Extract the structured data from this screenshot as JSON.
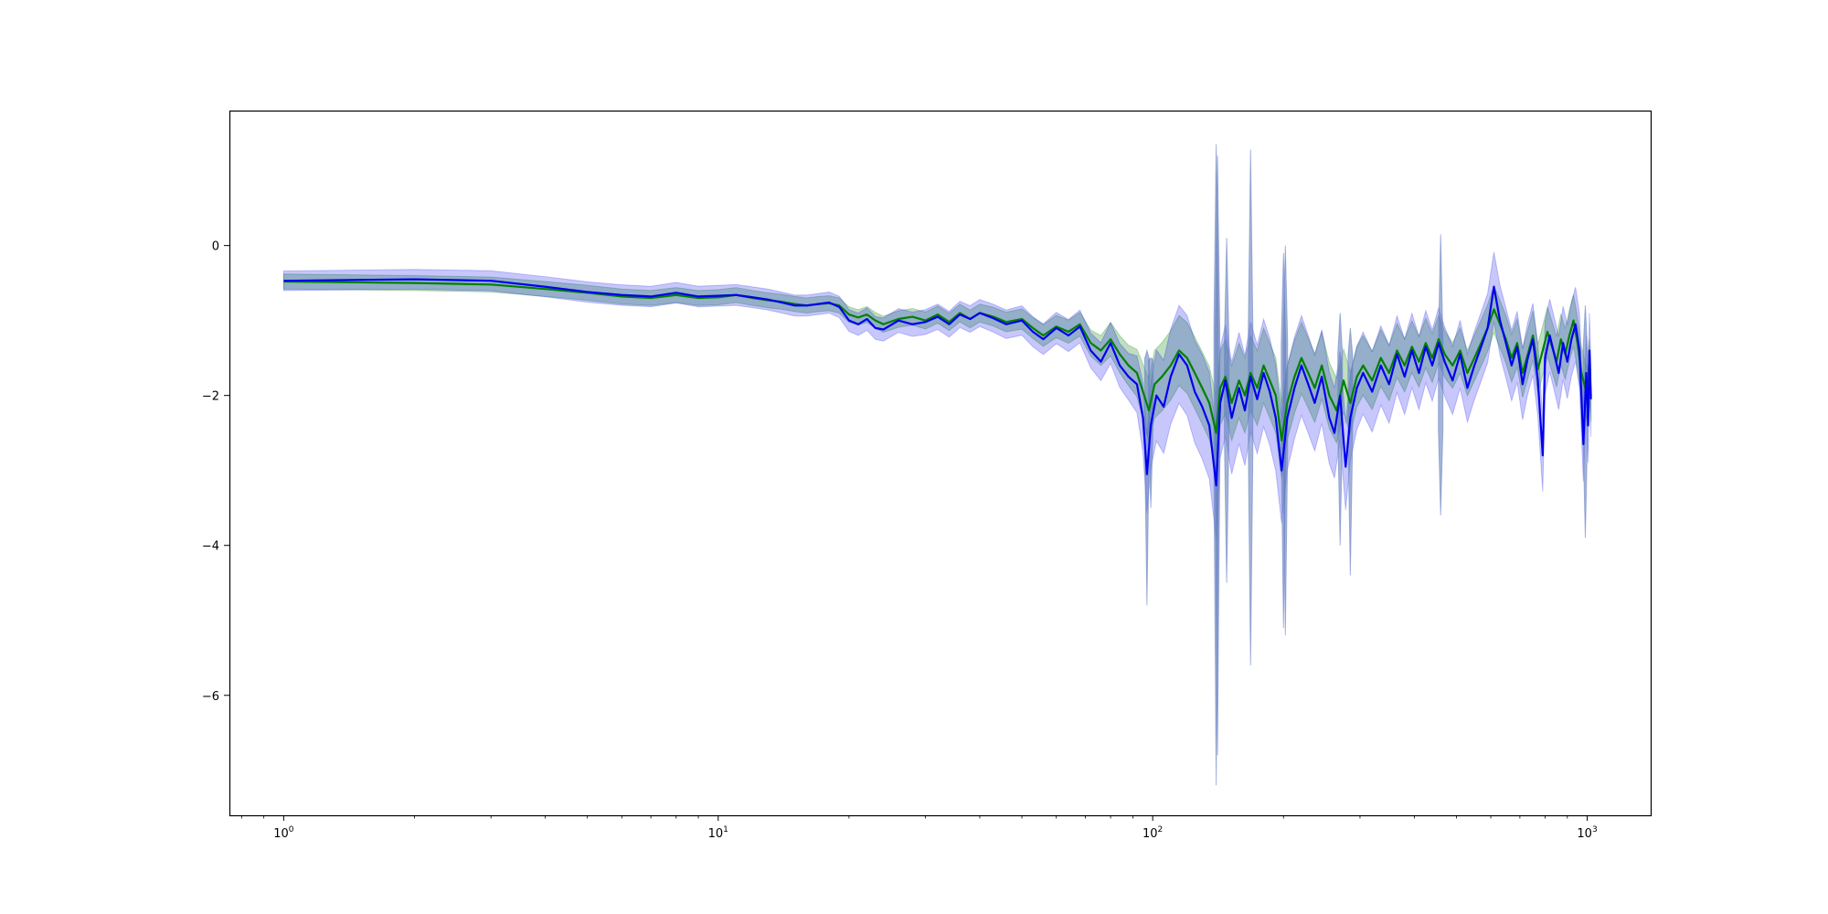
{
  "chart_data": {
    "type": "line",
    "title": "",
    "xlabel": "",
    "ylabel": "",
    "x_scale": "log",
    "xlim": [
      0.75,
      1400
    ],
    "ylim": [
      -7.6,
      1.8
    ],
    "grid": false,
    "legend": "none",
    "x_ticks": [
      {
        "value": 1,
        "base": "10",
        "exp": "0"
      },
      {
        "value": 10,
        "base": "10",
        "exp": "1"
      },
      {
        "value": 100,
        "base": "10",
        "exp": "2"
      },
      {
        "value": 1000,
        "base": "10",
        "exp": "3"
      }
    ],
    "y_ticks": [
      {
        "value": 0,
        "label": "0"
      },
      {
        "value": -2,
        "label": "−2"
      },
      {
        "value": -4,
        "label": "−4"
      },
      {
        "value": -6,
        "label": "−6"
      }
    ],
    "series": [
      {
        "color": "#008000",
        "band_color": "#008000",
        "band_opacity": 0.25,
        "points": [
          [
            1,
            -0.48
          ],
          [
            2,
            -0.5
          ],
          [
            3,
            -0.52
          ],
          [
            4,
            -0.58
          ],
          [
            5,
            -0.63
          ],
          [
            6,
            -0.68
          ],
          [
            7,
            -0.7
          ],
          [
            8,
            -0.66
          ],
          [
            9,
            -0.7
          ],
          [
            10,
            -0.69
          ],
          [
            11,
            -0.66
          ],
          [
            12,
            -0.7
          ],
          [
            13,
            -0.73
          ],
          [
            14,
            -0.75
          ],
          [
            15,
            -0.78
          ],
          [
            16,
            -0.8
          ],
          [
            17,
            -0.78
          ],
          [
            18,
            -0.77
          ],
          [
            19,
            -0.8
          ],
          [
            20,
            -0.92
          ],
          [
            21,
            -0.96
          ],
          [
            22,
            -0.92
          ],
          [
            23,
            -1.0
          ],
          [
            24,
            -1.05
          ],
          [
            26,
            -0.98
          ],
          [
            28,
            -0.95
          ],
          [
            30,
            -1.0
          ],
          [
            32,
            -0.92
          ],
          [
            34,
            -1.02
          ],
          [
            36,
            -0.9
          ],
          [
            38,
            -0.98
          ],
          [
            40,
            -0.9
          ],
          [
            43,
            -0.95
          ],
          [
            46,
            -1.02
          ],
          [
            50,
            -0.98
          ],
          [
            53,
            -1.1
          ],
          [
            56,
            -1.2
          ],
          [
            60,
            -1.08
          ],
          [
            64,
            -1.15
          ],
          [
            68,
            -1.05
          ],
          [
            72,
            -1.3
          ],
          [
            76,
            -1.4
          ],
          [
            80,
            -1.25
          ],
          [
            84,
            -1.45
          ],
          [
            88,
            -1.6
          ],
          [
            92,
            -1.7
          ],
          [
            95,
            -1.95
          ],
          [
            98,
            -2.2
          ],
          [
            101,
            -1.85
          ],
          [
            105,
            -1.75
          ],
          [
            110,
            -1.6
          ],
          [
            115,
            -1.4
          ],
          [
            120,
            -1.5
          ],
          [
            125,
            -1.7
          ],
          [
            130,
            -1.9
          ],
          [
            135,
            -2.1
          ],
          [
            140,
            -2.5
          ],
          [
            143,
            -1.9
          ],
          [
            147,
            -1.75
          ],
          [
            152,
            -2.1
          ],
          [
            158,
            -1.8
          ],
          [
            163,
            -2.0
          ],
          [
            168,
            -1.7
          ],
          [
            174,
            -1.9
          ],
          [
            180,
            -1.6
          ],
          [
            186,
            -1.8
          ],
          [
            192,
            -2.0
          ],
          [
            198,
            -2.6
          ],
          [
            204,
            -2.1
          ],
          [
            212,
            -1.75
          ],
          [
            220,
            -1.5
          ],
          [
            228,
            -1.7
          ],
          [
            236,
            -1.9
          ],
          [
            245,
            -1.6
          ],
          [
            255,
            -2.0
          ],
          [
            265,
            -2.2
          ],
          [
            275,
            -1.8
          ],
          [
            285,
            -2.1
          ],
          [
            295,
            -1.75
          ],
          [
            305,
            -1.6
          ],
          [
            320,
            -1.8
          ],
          [
            335,
            -1.5
          ],
          [
            350,
            -1.7
          ],
          [
            365,
            -1.4
          ],
          [
            380,
            -1.6
          ],
          [
            395,
            -1.35
          ],
          [
            410,
            -1.55
          ],
          [
            425,
            -1.3
          ],
          [
            440,
            -1.5
          ],
          [
            455,
            -1.25
          ],
          [
            470,
            -1.45
          ],
          [
            490,
            -1.6
          ],
          [
            510,
            -1.4
          ],
          [
            530,
            -1.7
          ],
          [
            550,
            -1.5
          ],
          [
            570,
            -1.3
          ],
          [
            590,
            -1.1
          ],
          [
            610,
            -0.85
          ],
          [
            630,
            -1.05
          ],
          [
            650,
            -1.25
          ],
          [
            670,
            -1.5
          ],
          [
            690,
            -1.3
          ],
          [
            710,
            -1.7
          ],
          [
            730,
            -1.45
          ],
          [
            750,
            -1.2
          ],
          [
            770,
            -1.65
          ],
          [
            790,
            -1.4
          ],
          [
            810,
            -1.15
          ],
          [
            830,
            -1.35
          ],
          [
            850,
            -1.55
          ],
          [
            870,
            -1.25
          ],
          [
            890,
            -1.45
          ],
          [
            910,
            -1.2
          ],
          [
            930,
            -1.0
          ],
          [
            950,
            -1.3
          ],
          [
            970,
            -1.7
          ],
          [
            990,
            -1.9
          ],
          [
            1000,
            -2.0
          ],
          [
            1010,
            -1.6
          ],
          [
            1020,
            -2.0
          ]
        ],
        "band_half_width": [
          [
            1,
            0.1
          ],
          [
            18,
            0.1
          ],
          [
            40,
            0.12
          ],
          [
            70,
            0.16
          ],
          [
            90,
            0.28
          ],
          [
            100,
            0.45
          ],
          [
            150,
            0.5
          ],
          [
            200,
            0.5
          ],
          [
            300,
            0.4
          ],
          [
            500,
            0.3
          ],
          [
            1020,
            0.35
          ]
        ]
      },
      {
        "color": "#0000ee",
        "band_color": "#0000ee",
        "band_opacity": 0.22,
        "points": [
          [
            1,
            -0.47
          ],
          [
            2,
            -0.45
          ],
          [
            3,
            -0.47
          ],
          [
            4,
            -0.55
          ],
          [
            5,
            -0.62
          ],
          [
            6,
            -0.66
          ],
          [
            7,
            -0.68
          ],
          [
            8,
            -0.63
          ],
          [
            9,
            -0.68
          ],
          [
            10,
            -0.67
          ],
          [
            11,
            -0.66
          ],
          [
            12,
            -0.69
          ],
          [
            13,
            -0.72
          ],
          [
            14,
            -0.76
          ],
          [
            15,
            -0.8
          ],
          [
            16,
            -0.8
          ],
          [
            17,
            -0.78
          ],
          [
            18,
            -0.76
          ],
          [
            19,
            -0.82
          ],
          [
            20,
            -1.0
          ],
          [
            21,
            -1.05
          ],
          [
            22,
            -0.98
          ],
          [
            23,
            -1.1
          ],
          [
            24,
            -1.12
          ],
          [
            26,
            -1.0
          ],
          [
            28,
            -1.05
          ],
          [
            30,
            -1.02
          ],
          [
            32,
            -0.95
          ],
          [
            34,
            -1.05
          ],
          [
            36,
            -0.92
          ],
          [
            38,
            -0.98
          ],
          [
            40,
            -0.9
          ],
          [
            43,
            -0.97
          ],
          [
            46,
            -1.05
          ],
          [
            50,
            -1.0
          ],
          [
            53,
            -1.15
          ],
          [
            56,
            -1.25
          ],
          [
            60,
            -1.1
          ],
          [
            64,
            -1.2
          ],
          [
            68,
            -1.08
          ],
          [
            72,
            -1.4
          ],
          [
            76,
            -1.55
          ],
          [
            80,
            -1.3
          ],
          [
            84,
            -1.6
          ],
          [
            88,
            -1.75
          ],
          [
            92,
            -1.85
          ],
          [
            95,
            -2.3
          ],
          [
            97,
            -3.05
          ],
          [
            99,
            -2.4
          ],
          [
            102,
            -2.0
          ],
          [
            106,
            -2.15
          ],
          [
            110,
            -1.75
          ],
          [
            115,
            -1.45
          ],
          [
            120,
            -1.6
          ],
          [
            125,
            -1.95
          ],
          [
            130,
            -2.15
          ],
          [
            135,
            -2.4
          ],
          [
            140,
            -3.2
          ],
          [
            143,
            -2.1
          ],
          [
            147,
            -1.8
          ],
          [
            152,
            -2.3
          ],
          [
            158,
            -1.9
          ],
          [
            163,
            -2.2
          ],
          [
            168,
            -1.75
          ],
          [
            174,
            -2.05
          ],
          [
            180,
            -1.7
          ],
          [
            186,
            -1.95
          ],
          [
            192,
            -2.3
          ],
          [
            198,
            -3.0
          ],
          [
            204,
            -2.3
          ],
          [
            212,
            -1.9
          ],
          [
            220,
            -1.6
          ],
          [
            228,
            -1.85
          ],
          [
            236,
            -2.1
          ],
          [
            245,
            -1.75
          ],
          [
            255,
            -2.3
          ],
          [
            262,
            -2.5
          ],
          [
            270,
            -2.0
          ],
          [
            278,
            -2.95
          ],
          [
            285,
            -2.3
          ],
          [
            295,
            -1.9
          ],
          [
            305,
            -1.7
          ],
          [
            320,
            -1.95
          ],
          [
            335,
            -1.6
          ],
          [
            350,
            -1.85
          ],
          [
            365,
            -1.45
          ],
          [
            380,
            -1.75
          ],
          [
            395,
            -1.4
          ],
          [
            410,
            -1.7
          ],
          [
            425,
            -1.35
          ],
          [
            440,
            -1.6
          ],
          [
            455,
            -1.3
          ],
          [
            470,
            -1.55
          ],
          [
            490,
            -1.8
          ],
          [
            510,
            -1.45
          ],
          [
            530,
            -1.9
          ],
          [
            550,
            -1.6
          ],
          [
            570,
            -1.35
          ],
          [
            590,
            -1.1
          ],
          [
            610,
            -0.55
          ],
          [
            630,
            -1.0
          ],
          [
            650,
            -1.3
          ],
          [
            670,
            -1.6
          ],
          [
            690,
            -1.35
          ],
          [
            710,
            -1.85
          ],
          [
            730,
            -1.5
          ],
          [
            750,
            -1.25
          ],
          [
            770,
            -1.8
          ],
          [
            790,
            -2.8
          ],
          [
            800,
            -1.5
          ],
          [
            820,
            -1.2
          ],
          [
            840,
            -1.45
          ],
          [
            860,
            -1.7
          ],
          [
            880,
            -1.3
          ],
          [
            900,
            -1.55
          ],
          [
            920,
            -1.25
          ],
          [
            940,
            -1.05
          ],
          [
            960,
            -1.4
          ],
          [
            980,
            -2.65
          ],
          [
            995,
            -1.7
          ],
          [
            1005,
            -2.4
          ],
          [
            1012,
            -1.4
          ],
          [
            1020,
            -2.05
          ]
        ],
        "band_half_width": [
          [
            1,
            0.13
          ],
          [
            18,
            0.14
          ],
          [
            40,
            0.18
          ],
          [
            70,
            0.22
          ],
          [
            90,
            0.32
          ],
          [
            100,
            0.6
          ],
          [
            150,
            0.75
          ],
          [
            200,
            0.7
          ],
          [
            300,
            0.55
          ],
          [
            500,
            0.45
          ],
          [
            1020,
            0.5
          ]
        ]
      }
    ],
    "spikes": [
      {
        "x": 97,
        "low": -4.8,
        "high": -1.4
      },
      {
        "x": 99,
        "low": -3.5,
        "high": -1.5
      },
      {
        "x": 140,
        "low": -7.2,
        "high": 1.35
      },
      {
        "x": 141,
        "low": -6.8,
        "high": 1.2
      },
      {
        "x": 148,
        "low": -4.5,
        "high": 0.1
      },
      {
        "x": 168,
        "low": -5.6,
        "high": 1.28
      },
      {
        "x": 200,
        "low": -5.1,
        "high": -0.1
      },
      {
        "x": 202,
        "low": -5.2,
        "high": 0.0
      },
      {
        "x": 270,
        "low": -4.0,
        "high": -0.9
      },
      {
        "x": 285,
        "low": -4.4,
        "high": -1.1
      },
      {
        "x": 460,
        "low": -3.6,
        "high": 0.15
      },
      {
        "x": 990,
        "low": -3.9,
        "high": -0.8
      }
    ]
  }
}
